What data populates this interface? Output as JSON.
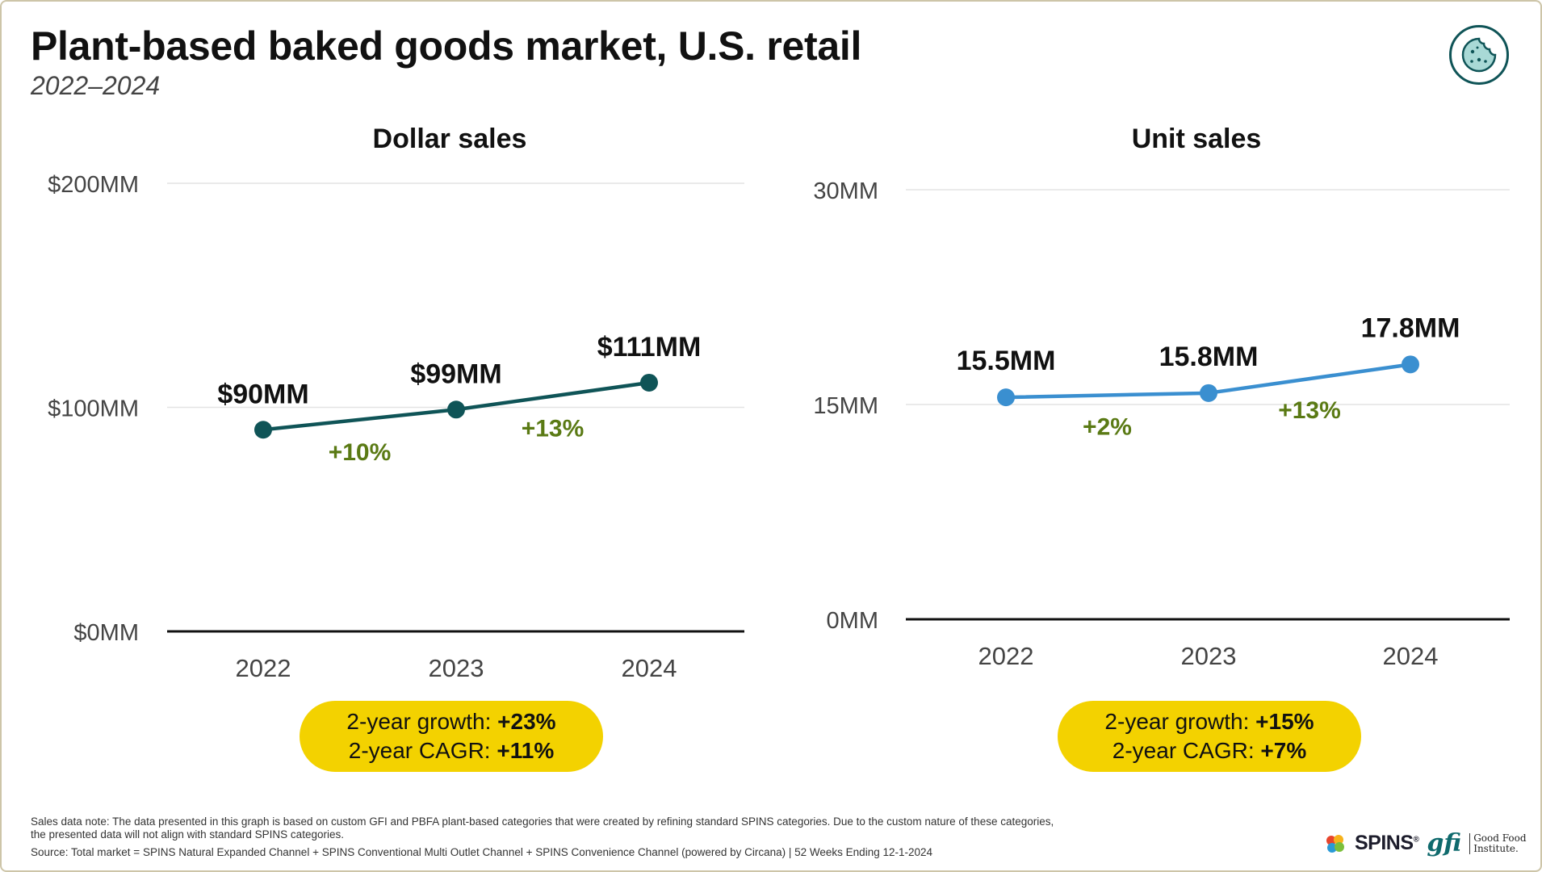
{
  "header": {
    "title": "Plant-based baked goods market, U.S. retail",
    "subtitle": "2022–2024",
    "badge_icon": "cookie-icon"
  },
  "colors": {
    "dollar_line": "#0f5457",
    "unit_line": "#3a8fd0",
    "growth_label": "#5a7a14",
    "pill": "#f3d200",
    "axis": "#111111",
    "grid": "#e4e4e4"
  },
  "chart_data": [
    {
      "type": "line",
      "title": "Dollar sales",
      "categories": [
        "2022",
        "2023",
        "2024"
      ],
      "values": [
        90,
        99,
        111
      ],
      "value_labels": [
        "$90MM",
        "$99MM",
        "$111MM"
      ],
      "growth_labels": [
        "+10%",
        "+13%"
      ],
      "y_ticks": [
        0,
        100,
        200
      ],
      "y_tick_labels": [
        "$0MM",
        "$100MM",
        "$200MM"
      ],
      "ylim": [
        0,
        200
      ],
      "xlabel": "",
      "ylabel": "",
      "grid": true
    },
    {
      "type": "line",
      "title": "Unit sales",
      "categories": [
        "2022",
        "2023",
        "2024"
      ],
      "values": [
        15.5,
        15.8,
        17.8
      ],
      "value_labels": [
        "15.5MM",
        "15.8MM",
        "17.8MM"
      ],
      "growth_labels": [
        "+2%",
        "+13%"
      ],
      "y_ticks": [
        0,
        15,
        30
      ],
      "y_tick_labels": [
        "0MM",
        "15MM",
        "30MM"
      ],
      "ylim": [
        0,
        30
      ],
      "xlabel": "",
      "ylabel": "",
      "grid": true
    }
  ],
  "summaries": {
    "dollar": {
      "growth_label": "2-year growth: ",
      "growth_value": "+23%",
      "cagr_label": "2-year CAGR: ",
      "cagr_value": "+11%"
    },
    "unit": {
      "growth_label": "2-year growth: ",
      "growth_value": "+15%",
      "cagr_label": "2-year CAGR: ",
      "cagr_value": "+7%"
    }
  },
  "footer": {
    "note_line1": "Sales data note: The data presented in this graph is based on custom GFI and PBFA plant-based categories that were created by refining standard SPINS categories. Due to the custom nature of these categories,",
    "note_line2": "the presented data will not align with standard SPINS categories.",
    "source": "Source: Total market = SPINS Natural Expanded Channel + SPINS Conventional Multi Outlet Channel + SPINS Convenience Channel (powered by Circana) | 52 Weeks Ending 12-1-2024",
    "logo_spins": "SPINS",
    "logo_spins_mark": "®",
    "logo_gfi": "gfi",
    "logo_gfi_name1": "Good Food",
    "logo_gfi_name2": "Institute."
  }
}
